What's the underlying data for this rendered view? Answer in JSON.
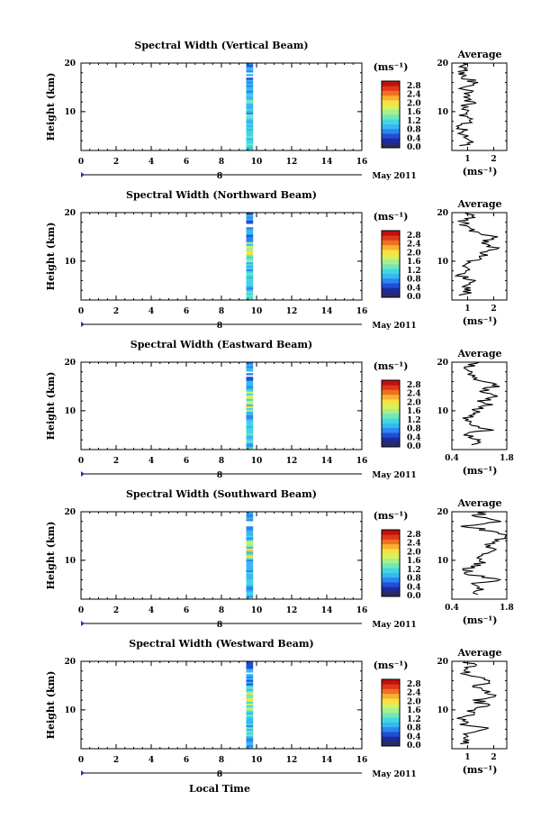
{
  "figure": {
    "xlabel": "Local Time",
    "date_label": "May 2011",
    "avg_title": "Average",
    "units": "(ms⁻¹)",
    "colorbar_ticks": [
      "2.8",
      "2.4",
      "2.0",
      "1.6",
      "1.2",
      "0.8",
      "0.4",
      "0.0"
    ],
    "colorbar_colors": [
      "#2a2a66",
      "#1c2a9a",
      "#1f4fd4",
      "#2a86f2",
      "#36b8f4",
      "#3fd8e0",
      "#72e8b8",
      "#a8f08a",
      "#d8f060",
      "#f8e040",
      "#f8b030",
      "#f07020",
      "#e03818",
      "#c01010"
    ],
    "main_x_ticks": [
      "0",
      "2",
      "4",
      "6",
      "8",
      "10",
      "12",
      "14",
      "16"
    ],
    "day_marker": "8"
  },
  "chart_data": [
    {
      "type": "heatmap",
      "title": "Spectral Width (Vertical Beam)",
      "xlabel": "",
      "ylabel": "Height (km)",
      "xlim": [
        0,
        16
      ],
      "ylim": [
        2,
        20
      ],
      "data_window_local_time": [
        9.0,
        9.6
      ],
      "avg_xlim": [
        0.4,
        2.5
      ],
      "avg_xticks": [
        "1",
        "2"
      ],
      "avg_profile": [
        [
          0.9,
          3
        ],
        [
          1.2,
          4
        ],
        [
          0.8,
          5
        ],
        [
          1.0,
          6
        ],
        [
          0.7,
          7
        ],
        [
          1.1,
          8
        ],
        [
          0.9,
          9
        ],
        [
          1.0,
          10
        ],
        [
          0.8,
          11
        ],
        [
          1.2,
          12
        ],
        [
          0.9,
          13
        ],
        [
          1.0,
          14
        ],
        [
          0.8,
          15
        ],
        [
          1.3,
          16
        ],
        [
          0.9,
          17
        ],
        [
          0.7,
          18
        ],
        [
          1.0,
          19
        ],
        [
          0.8,
          20
        ]
      ]
    },
    {
      "type": "heatmap",
      "title": "Spectral Width (Northward Beam)",
      "xlabel": "",
      "ylabel": "Height (km)",
      "xlim": [
        0,
        16
      ],
      "ylim": [
        2,
        20
      ],
      "data_window_local_time": [
        9.0,
        9.6
      ],
      "avg_xlim": [
        0.4,
        2.5
      ],
      "avg_xticks": [
        "1",
        "2"
      ],
      "avg_profile": [
        [
          0.8,
          3
        ],
        [
          1.0,
          4
        ],
        [
          0.9,
          5
        ],
        [
          1.2,
          6
        ],
        [
          0.8,
          7
        ],
        [
          1.0,
          8
        ],
        [
          0.9,
          9
        ],
        [
          1.1,
          10
        ],
        [
          1.5,
          11
        ],
        [
          1.8,
          12
        ],
        [
          2.0,
          13
        ],
        [
          1.6,
          14
        ],
        [
          1.9,
          15
        ],
        [
          1.2,
          16
        ],
        [
          1.0,
          17
        ],
        [
          0.8,
          18
        ],
        [
          1.1,
          19
        ],
        [
          0.9,
          20
        ]
      ]
    },
    {
      "type": "heatmap",
      "title": "Spectral Width (Eastward Beam)",
      "xlabel": "",
      "ylabel": "Height (km)",
      "xlim": [
        0,
        16
      ],
      "ylim": [
        2,
        20
      ],
      "data_window_local_time": [
        9.0,
        9.6
      ],
      "avg_xlim": [
        0.4,
        1.8
      ],
      "avg_xticks": [
        "0.4",
        "1.8"
      ],
      "avg_profile": [
        [
          0.9,
          3
        ],
        [
          1.2,
          4
        ],
        [
          0.7,
          5
        ],
        [
          1.3,
          6
        ],
        [
          0.8,
          7
        ],
        [
          0.7,
          8
        ],
        [
          0.9,
          9
        ],
        [
          1.0,
          10
        ],
        [
          1.3,
          11
        ],
        [
          1.2,
          12
        ],
        [
          1.4,
          13
        ],
        [
          1.2,
          14
        ],
        [
          1.5,
          15
        ],
        [
          1.3,
          16
        ],
        [
          0.9,
          17
        ],
        [
          1.0,
          18
        ],
        [
          0.8,
          19
        ],
        [
          1.1,
          20
        ]
      ]
    },
    {
      "type": "heatmap",
      "title": "Spectral Width (Southward Beam)",
      "xlabel": "",
      "ylabel": "Height (km)",
      "xlim": [
        0,
        16
      ],
      "ylim": [
        2,
        20
      ],
      "data_window_local_time": [
        9.0,
        9.6
      ],
      "avg_xlim": [
        0.4,
        1.8
      ],
      "avg_xticks": [
        "0.4",
        "1.8"
      ],
      "avg_profile": [
        [
          0.9,
          3
        ],
        [
          1.1,
          4
        ],
        [
          0.8,
          5
        ],
        [
          1.7,
          6
        ],
        [
          0.9,
          7
        ],
        [
          0.8,
          8
        ],
        [
          1.0,
          9
        ],
        [
          1.2,
          10
        ],
        [
          1.1,
          11
        ],
        [
          1.4,
          12
        ],
        [
          1.3,
          13
        ],
        [
          1.6,
          14
        ],
        [
          1.8,
          15
        ],
        [
          1.4,
          16
        ],
        [
          0.8,
          17
        ],
        [
          1.7,
          18
        ],
        [
          1.0,
          19
        ],
        [
          1.3,
          20
        ]
      ]
    },
    {
      "type": "heatmap",
      "title": "Spectral Width (Westward Beam)",
      "xlabel": "",
      "ylabel": "Height (km)",
      "xlim": [
        0,
        16
      ],
      "ylim": [
        2,
        20
      ],
      "data_window_local_time": [
        9.0,
        9.6
      ],
      "avg_xlim": [
        0.4,
        2.5
      ],
      "avg_xticks": [
        "1",
        "2"
      ],
      "avg_profile": [
        [
          0.8,
          3
        ],
        [
          1.0,
          4
        ],
        [
          0.9,
          5
        ],
        [
          1.8,
          6
        ],
        [
          0.9,
          7
        ],
        [
          0.8,
          8
        ],
        [
          1.0,
          9
        ],
        [
          1.2,
          10
        ],
        [
          1.6,
          11
        ],
        [
          1.4,
          12
        ],
        [
          2.0,
          13
        ],
        [
          1.5,
          14
        ],
        [
          1.3,
          15
        ],
        [
          1.9,
          16
        ],
        [
          1.0,
          17
        ],
        [
          0.8,
          18
        ],
        [
          1.2,
          19
        ],
        [
          0.9,
          20
        ]
      ]
    }
  ]
}
